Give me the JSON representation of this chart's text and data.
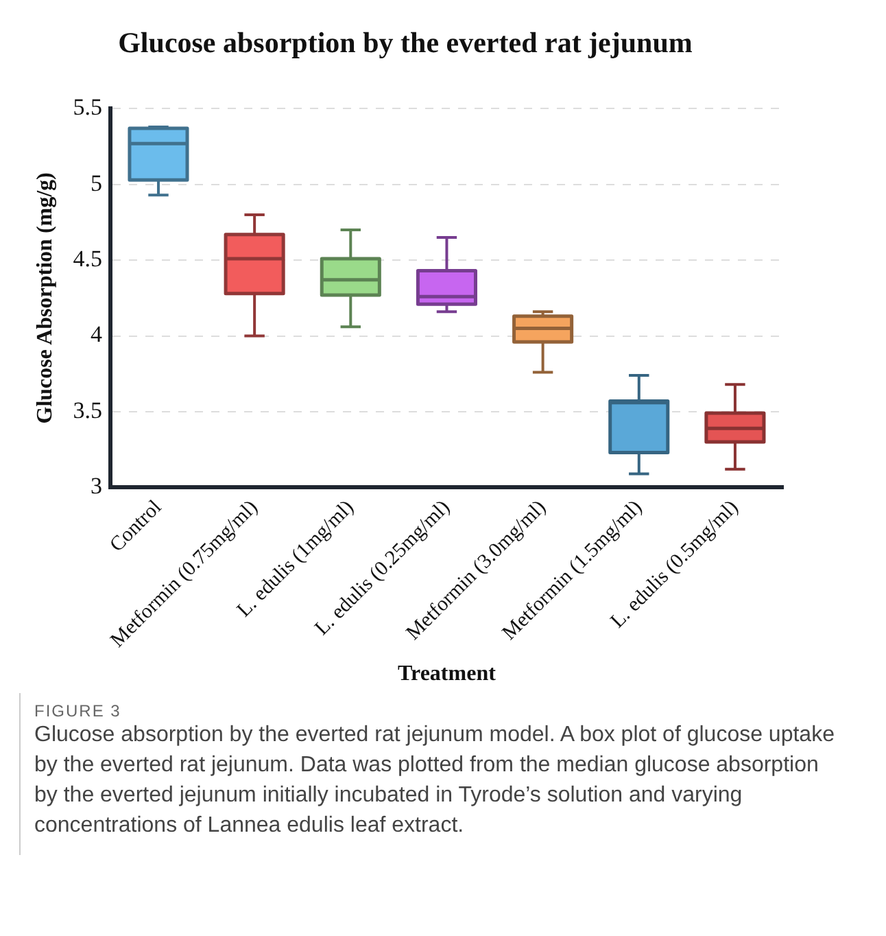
{
  "chart_data": {
    "type": "box",
    "title": "Glucose absorption by the everted rat jejunum",
    "xlabel": "Treatment",
    "ylabel": "Glucose Absorption (mg/g)",
    "categories": [
      "Control",
      "Metformin (0.75mg/ml)",
      "L. edulis (1mg/ml)",
      "L. edulis (0.25mg/ml)",
      "Metformin (3.0mg/ml)",
      "Metformin (1.5mg/ml)",
      "L. edulis (0.5mg/ml)"
    ],
    "boxes": [
      {
        "low": 4.93,
        "q1": 5.03,
        "median": 5.27,
        "q3": 5.37,
        "high": 5.38
      },
      {
        "low": 4.0,
        "q1": 4.28,
        "median": 4.51,
        "q3": 4.67,
        "high": 4.8
      },
      {
        "low": 4.06,
        "q1": 4.27,
        "median": 4.37,
        "q3": 4.51,
        "high": 4.7
      },
      {
        "low": 4.16,
        "q1": 4.21,
        "median": 4.26,
        "q3": 4.43,
        "high": 4.65
      },
      {
        "low": 3.76,
        "q1": 3.96,
        "median": 4.05,
        "q3": 4.13,
        "high": 4.16
      },
      {
        "low": 3.09,
        "q1": 3.23,
        "median": 3.56,
        "q3": 3.57,
        "high": 3.74
      },
      {
        "low": 3.12,
        "q1": 3.3,
        "median": 3.39,
        "q3": 3.49,
        "high": 3.68
      }
    ],
    "colors": [
      "#6bbcec",
      "#f25c5c",
      "#9ada8a",
      "#c766f0",
      "#f5a45e",
      "#5aa8d8",
      "#e45454"
    ],
    "ylim": [
      3,
      5.5
    ],
    "yticks": [
      3,
      3.5,
      4,
      4.5,
      5,
      5.5
    ],
    "grid": "y",
    "legend": false,
    "annotations": [
      "FIGURE 3",
      "Glucose absorption by the everted rat jejunum model. A box plot of glucose uptake by the everted rat jejunum. Data was plotted from the median glucose absorption by the everted jejunum initially incubated in Tyrode’s solution and varying concentrations of Lannea edulis leaf extract."
    ]
  }
}
